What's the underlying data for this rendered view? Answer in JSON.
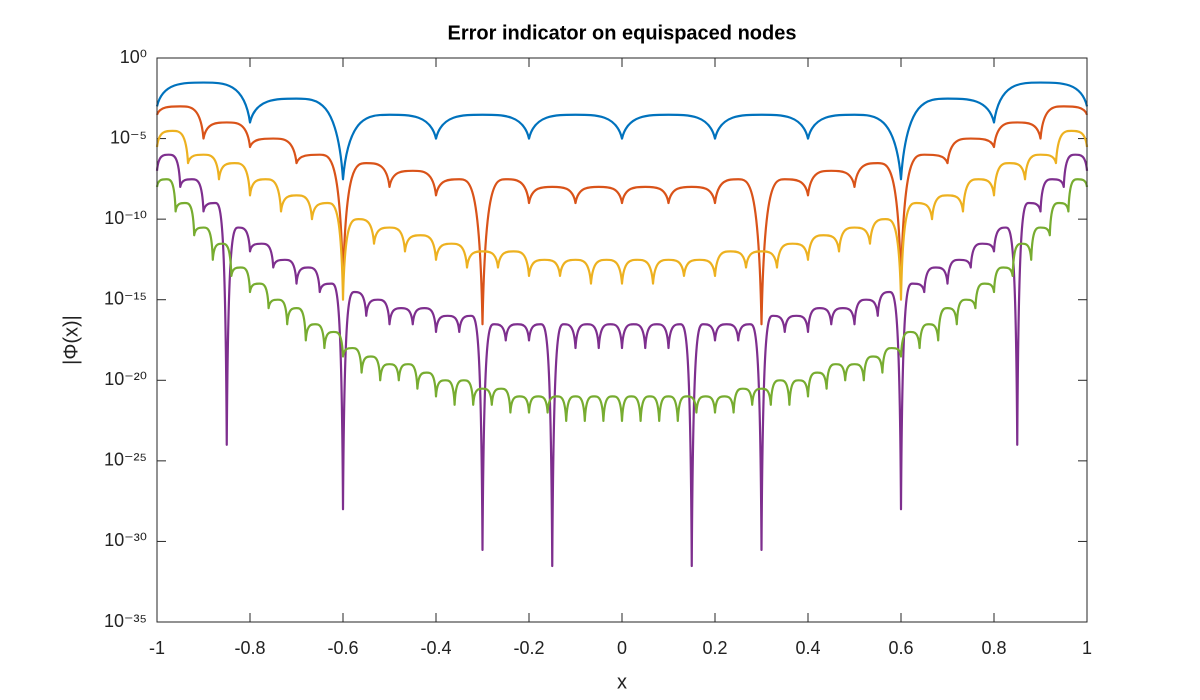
{
  "chart_data": {
    "type": "line",
    "title": "Error indicator on equispaced nodes",
    "xlabel": "x",
    "ylabel": "|Φ(x)|",
    "yscale": "log",
    "grid": false,
    "box": true,
    "xlim": [
      -1,
      1
    ],
    "xticks": [
      -1,
      -0.8,
      -0.6,
      -0.4,
      -0.2,
      0,
      0.2,
      0.4,
      0.6,
      0.8,
      1
    ],
    "ylim": [
      1e-35,
      1
    ],
    "yticks": [
      {
        "value": 1,
        "label": "10⁰"
      },
      {
        "value": 1e-05,
        "label": "10⁻⁵"
      },
      {
        "value": 1e-10,
        "label": "10⁻¹⁰"
      },
      {
        "value": 1e-15,
        "label": "10⁻¹⁵"
      },
      {
        "value": 1e-20,
        "label": "10⁻²⁰"
      },
      {
        "value": 1e-25,
        "label": "10⁻²⁵"
      },
      {
        "value": 1e-30,
        "label": "10⁻³⁰"
      },
      {
        "value": 1e-35,
        "label": "10⁻³⁵"
      }
    ],
    "series": [
      {
        "color": "#0072BD",
        "x": [
          -1,
          -0.9,
          -0.8,
          -0.7,
          -0.6,
          -0.5,
          -0.4,
          -0.3,
          -0.2,
          -0.1,
          0,
          0.1,
          0.2,
          0.3,
          0.4,
          0.5,
          0.6,
          0.7,
          0.8,
          0.9,
          1
        ],
        "values": [
          0.001,
          0.03,
          0.0001,
          0.003,
          3e-08,
          0.0003,
          1e-05,
          0.0003,
          1e-05,
          0.0003,
          1e-05,
          0.0003,
          1e-05,
          0.0003,
          1e-05,
          0.0003,
          3e-08,
          0.003,
          0.0001,
          0.03,
          0.001
        ]
      },
      {
        "color": "#D95319",
        "x": [
          -1,
          -0.95,
          -0.9,
          -0.85,
          -0.8,
          -0.75,
          -0.7,
          -0.65,
          -0.6,
          -0.55,
          -0.5,
          -0.45,
          -0.4,
          -0.35,
          -0.3,
          -0.25,
          -0.2,
          -0.15,
          -0.1,
          -0.05,
          0,
          0.05,
          0.1,
          0.15,
          0.2,
          0.25,
          0.3,
          0.35,
          0.4,
          0.45,
          0.5,
          0.55,
          0.6,
          0.65,
          0.7,
          0.75,
          0.8,
          0.85,
          0.9,
          0.95,
          1
        ],
        "values": [
          0.0003,
          0.001,
          1e-05,
          0.0001,
          3e-06,
          1e-05,
          3e-07,
          1e-06,
          1e-14,
          3e-07,
          1e-08,
          1e-07,
          3e-09,
          3e-08,
          3e-17,
          3e-08,
          1e-09,
          1e-08,
          1e-09,
          1e-08,
          1e-09,
          1e-08,
          1e-09,
          1e-08,
          1e-09,
          3e-08,
          3e-17,
          3e-08,
          3e-09,
          1e-07,
          1e-08,
          3e-07,
          1e-14,
          1e-06,
          3e-07,
          1e-05,
          3e-06,
          0.0001,
          1e-05,
          0.001,
          0.0003
        ]
      },
      {
        "color": "#EDB120",
        "x": [
          -1,
          -0.9667,
          -0.9333,
          -0.9,
          -0.8667,
          -0.8333,
          -0.8,
          -0.7667,
          -0.7333,
          -0.7,
          -0.6667,
          -0.6333,
          -0.6,
          -0.5667,
          -0.5333,
          -0.5,
          -0.4667,
          -0.4333,
          -0.4,
          -0.3667,
          -0.3333,
          -0.3,
          -0.2667,
          -0.2333,
          -0.2,
          -0.1667,
          -0.1333,
          -0.1,
          -0.0667,
          -0.0333,
          0,
          0.0333,
          0.0667,
          0.1,
          0.1333,
          0.1667,
          0.2,
          0.2333,
          0.2667,
          0.3,
          0.3333,
          0.3667,
          0.4,
          0.4333,
          0.4667,
          0.5,
          0.5333,
          0.5667,
          0.6,
          0.6333,
          0.6667,
          0.7,
          0.7333,
          0.7667,
          0.8,
          0.8333,
          0.8667,
          0.9,
          0.9333,
          0.9667,
          1
        ],
        "values": [
          3e-06,
          3e-05,
          3e-07,
          1e-06,
          3e-08,
          3e-07,
          3e-09,
          3e-08,
          3e-10,
          3e-09,
          1e-10,
          1e-09,
          1e-15,
          1e-10,
          3e-12,
          3e-11,
          1e-12,
          1e-11,
          3e-13,
          3e-12,
          1e-13,
          1e-12,
          1e-13,
          1e-12,
          3e-14,
          3e-13,
          3e-14,
          3e-13,
          1e-14,
          3e-13,
          1e-14,
          3e-13,
          1e-14,
          3e-13,
          3e-14,
          3e-13,
          3e-14,
          1e-12,
          1e-13,
          1e-12,
          1e-13,
          3e-12,
          3e-13,
          1e-11,
          1e-12,
          3e-11,
          3e-12,
          1e-10,
          1e-15,
          1e-09,
          1e-10,
          3e-09,
          3e-10,
          3e-08,
          3e-09,
          3e-07,
          3e-08,
          1e-06,
          3e-07,
          3e-05,
          3e-06
        ]
      },
      {
        "color": "#7E2F8E",
        "x": [
          -1,
          -0.975,
          -0.95,
          -0.925,
          -0.9,
          -0.875,
          -0.85,
          -0.825,
          -0.8,
          -0.775,
          -0.75,
          -0.725,
          -0.7,
          -0.675,
          -0.65,
          -0.625,
          -0.6,
          -0.575,
          -0.55,
          -0.525,
          -0.5,
          -0.475,
          -0.45,
          -0.425,
          -0.4,
          -0.375,
          -0.35,
          -0.325,
          -0.3,
          -0.275,
          -0.25,
          -0.225,
          -0.2,
          -0.175,
          -0.15,
          -0.125,
          -0.1,
          -0.075,
          -0.05,
          -0.025,
          0,
          0.025,
          0.05,
          0.075,
          0.1,
          0.125,
          0.15,
          0.175,
          0.2,
          0.225,
          0.25,
          0.275,
          0.3,
          0.325,
          0.35,
          0.375,
          0.4,
          0.425,
          0.45,
          0.475,
          0.5,
          0.525,
          0.55,
          0.575,
          0.6,
          0.625,
          0.65,
          0.675,
          0.7,
          0.725,
          0.75,
          0.775,
          0.8,
          0.825,
          0.85,
          0.875,
          0.9,
          0.925,
          0.95,
          0.975,
          1
        ],
        "values": [
          1e-07,
          1e-06,
          1e-08,
          3e-08,
          3e-10,
          1e-09,
          1e-24,
          3e-11,
          1e-12,
          3e-12,
          1e-13,
          3e-13,
          1e-14,
          1e-13,
          3e-15,
          1e-14,
          1e-28,
          3e-15,
          1e-16,
          1e-15,
          3e-17,
          3e-16,
          3e-17,
          3e-16,
          1e-17,
          1e-16,
          1e-17,
          1e-16,
          3e-31,
          3e-17,
          3e-18,
          3e-17,
          3e-18,
          3e-17,
          3e-32,
          3e-17,
          1e-18,
          3e-17,
          1e-18,
          3e-17,
          1e-18,
          3e-17,
          1e-18,
          3e-17,
          1e-18,
          3e-17,
          3e-32,
          3e-17,
          3e-18,
          3e-17,
          3e-18,
          3e-17,
          3e-31,
          1e-16,
          1e-17,
          1e-16,
          1e-17,
          3e-16,
          3e-17,
          3e-16,
          3e-17,
          1e-15,
          1e-16,
          3e-15,
          1e-28,
          1e-14,
          3e-15,
          1e-13,
          1e-14,
          3e-13,
          1e-13,
          3e-12,
          1e-12,
          3e-11,
          1e-24,
          1e-09,
          3e-10,
          3e-08,
          1e-08,
          1e-06,
          1e-07
        ]
      },
      {
        "color": "#77AC30",
        "x": [
          -1,
          -0.98,
          -0.96,
          -0.94,
          -0.92,
          -0.9,
          -0.88,
          -0.86,
          -0.84,
          -0.82,
          -0.8,
          -0.78,
          -0.76,
          -0.74,
          -0.72,
          -0.7,
          -0.68,
          -0.66,
          -0.64,
          -0.62,
          -0.6,
          -0.58,
          -0.56,
          -0.54,
          -0.52,
          -0.5,
          -0.48,
          -0.46,
          -0.44,
          -0.42,
          -0.4,
          -0.38,
          -0.36,
          -0.34,
          -0.32,
          -0.3,
          -0.28,
          -0.26,
          -0.24,
          -0.22,
          -0.2,
          -0.18,
          -0.16,
          -0.14,
          -0.12,
          -0.1,
          -0.08,
          -0.06,
          -0.04,
          -0.02,
          0,
          0.02,
          0.04,
          0.06,
          0.08,
          0.1,
          0.12,
          0.14,
          0.16,
          0.18,
          0.2,
          0.22,
          0.24,
          0.26,
          0.28,
          0.3,
          0.32,
          0.34,
          0.36,
          0.38,
          0.4,
          0.42,
          0.44,
          0.46,
          0.48,
          0.5,
          0.52,
          0.54,
          0.56,
          0.58,
          0.6,
          0.62,
          0.64,
          0.66,
          0.68,
          0.7,
          0.72,
          0.74,
          0.76,
          0.78,
          0.8,
          0.82,
          0.84,
          0.86,
          0.88,
          0.9,
          0.92,
          0.94,
          0.96,
          0.98,
          1
        ],
        "values": [
          1e-08,
          3e-08,
          3e-10,
          1e-09,
          1e-11,
          3e-11,
          3e-13,
          3e-12,
          3e-14,
          1e-13,
          3e-15,
          1e-14,
          3e-16,
          1e-15,
          3e-17,
          3e-16,
          3e-18,
          3e-17,
          1e-18,
          1e-17,
          3e-19,
          1e-18,
          3e-20,
          3e-19,
          1e-20,
          1e-19,
          1e-20,
          1e-19,
          3e-21,
          3e-20,
          1e-21,
          1e-20,
          3e-22,
          1e-20,
          3e-22,
          3e-21,
          3e-22,
          3e-21,
          1e-22,
          1e-21,
          1e-22,
          1e-21,
          1e-22,
          1e-21,
          3e-23,
          1e-21,
          3e-23,
          1e-21,
          3e-23,
          1e-21,
          3e-23,
          1e-21,
          3e-23,
          1e-21,
          3e-23,
          1e-21,
          3e-23,
          1e-21,
          1e-22,
          1e-21,
          1e-22,
          1e-21,
          1e-22,
          3e-21,
          3e-22,
          3e-21,
          3e-22,
          1e-20,
          3e-22,
          1e-20,
          1e-21,
          3e-20,
          3e-21,
          1e-19,
          1e-20,
          1e-19,
          1e-20,
          3e-19,
          3e-20,
          1e-18,
          3e-19,
          1e-17,
          1e-18,
          3e-17,
          3e-18,
          3e-16,
          3e-17,
          1e-15,
          3e-16,
          1e-14,
          3e-15,
          1e-13,
          3e-14,
          3e-12,
          3e-13,
          3e-11,
          1e-11,
          1e-09,
          3e-10,
          3e-08,
          1e-08
        ]
      }
    ]
  }
}
